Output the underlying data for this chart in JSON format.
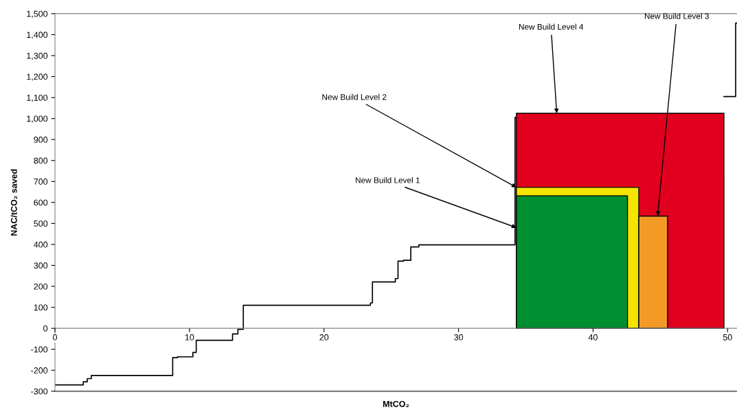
{
  "chart_data": {
    "type": "step",
    "xlabel": "MtCO₂",
    "ylabel": "NAC/tCO₂ saved",
    "xlim": [
      0,
      50.7
    ],
    "xticks": [
      0,
      10,
      20,
      30,
      40,
      50
    ],
    "ylim": [
      -300,
      1500
    ],
    "yticks": [
      -300,
      -200,
      -100,
      0,
      100,
      200,
      300,
      400,
      500,
      600,
      700,
      800,
      900,
      {
        "value": 1000,
        "label": "1,000"
      },
      {
        "value": 1100,
        "label": "1,100"
      },
      {
        "value": 1200,
        "label": "1,200"
      },
      {
        "value": 1300,
        "label": "1,300"
      },
      {
        "value": 1400,
        "label": "1,400"
      },
      {
        "value": 1500,
        "label": "1,500"
      }
    ],
    "grid": false,
    "legend": false,
    "series": [
      {
        "color": "#000000",
        "x": [
          0,
          2.1,
          2.4,
          2.7,
          8.75,
          9.1,
          10.25,
          10.5,
          13.2,
          13.6,
          14.0,
          23.45,
          23.6,
          25.3,
          25.5,
          25.9,
          26.45,
          27.05,
          34.2,
          34.3,
          49.73,
          50.6,
          50.7
        ],
        "values": [
          -270,
          -255,
          -240,
          -225,
          -140,
          -136,
          -115,
          -57,
          -27,
          -5,
          110,
          121,
          221,
          237,
          320,
          324,
          388,
          398,
          1005,
          null,
          1105,
          1455,
          1455
        ]
      },
      {
        "type": "area",
        "color": "#e2001f",
        "x": [
          34.3,
          49.73
        ],
        "values": [
          1025,
          1025
        ]
      },
      {
        "type": "area",
        "color": "#f7e300",
        "x": [
          34.3,
          43.4
        ],
        "values": [
          672,
          672
        ]
      },
      {
        "type": "area",
        "color": "#008f30",
        "x": [
          34.3,
          42.56
        ],
        "values": [
          632,
          632
        ]
      },
      {
        "type": "area",
        "color": "#f39a26",
        "x": [
          43.4,
          45.54
        ],
        "values": [
          535,
          535
        ]
      }
    ],
    "annotations": [
      {
        "text": "New Build Level 4",
        "x": 37.3,
        "y": 1025
      },
      {
        "text": "New Build Level 3",
        "x": 44.8,
        "y": 535
      },
      {
        "text": "New Build Level 2",
        "x": 34.3,
        "y": 672
      },
      {
        "text": "New Build Level 1",
        "x": 34.3,
        "y": 480
      }
    ]
  }
}
